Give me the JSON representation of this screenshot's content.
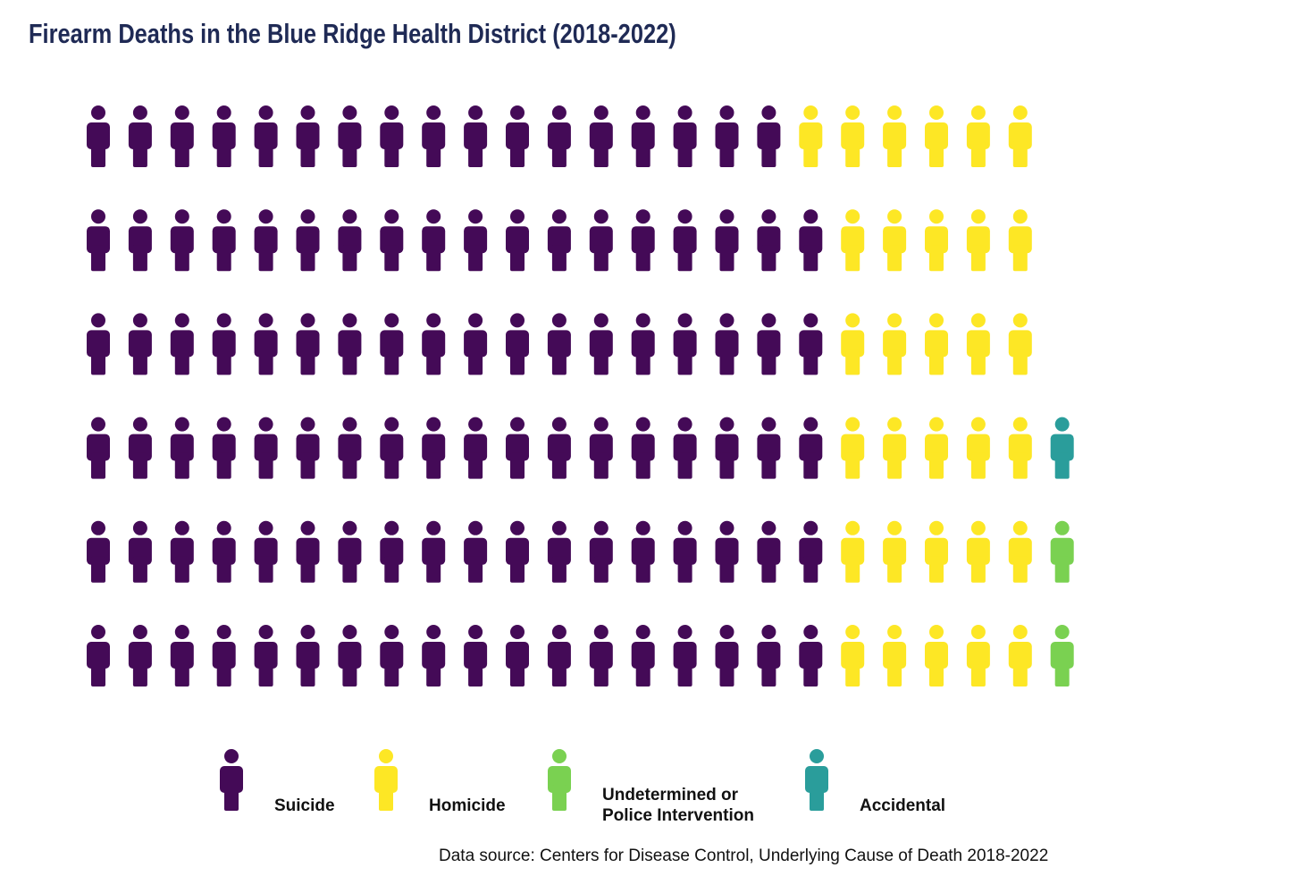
{
  "title": "Firearm Deaths in the Blue Ridge Health District (2018-2022)",
  "chart_data": {
    "type": "pictogram",
    "title": "Firearm Deaths in the Blue Ridge Health District (2018-2022)",
    "unit": "one person icon = one death",
    "categories": [
      {
        "key": "suicide",
        "name": "Suicide",
        "color": "#440a57",
        "count": 107
      },
      {
        "key": "homicide",
        "name": "Homicide",
        "color": "#fde725",
        "count": 31
      },
      {
        "key": "undetermined",
        "name": "Undetermined or Police Intervention",
        "label_lines": [
          "Undetermined or",
          "Police Intervention"
        ],
        "color": "#7ad151",
        "count": 2
      },
      {
        "key": "accidental",
        "name": "Accidental",
        "color": "#2a9d9b",
        "count": 1
      }
    ],
    "rows": [
      [
        "suicide",
        "suicide",
        "suicide",
        "suicide",
        "suicide",
        "suicide",
        "suicide",
        "suicide",
        "suicide",
        "suicide",
        "suicide",
        "suicide",
        "suicide",
        "suicide",
        "suicide",
        "suicide",
        "suicide",
        "homicide",
        "homicide",
        "homicide",
        "homicide",
        "homicide",
        "homicide"
      ],
      [
        "suicide",
        "suicide",
        "suicide",
        "suicide",
        "suicide",
        "suicide",
        "suicide",
        "suicide",
        "suicide",
        "suicide",
        "suicide",
        "suicide",
        "suicide",
        "suicide",
        "suicide",
        "suicide",
        "suicide",
        "suicide",
        "homicide",
        "homicide",
        "homicide",
        "homicide",
        "homicide"
      ],
      [
        "suicide",
        "suicide",
        "suicide",
        "suicide",
        "suicide",
        "suicide",
        "suicide",
        "suicide",
        "suicide",
        "suicide",
        "suicide",
        "suicide",
        "suicide",
        "suicide",
        "suicide",
        "suicide",
        "suicide",
        "suicide",
        "homicide",
        "homicide",
        "homicide",
        "homicide",
        "homicide"
      ],
      [
        "suicide",
        "suicide",
        "suicide",
        "suicide",
        "suicide",
        "suicide",
        "suicide",
        "suicide",
        "suicide",
        "suicide",
        "suicide",
        "suicide",
        "suicide",
        "suicide",
        "suicide",
        "suicide",
        "suicide",
        "suicide",
        "homicide",
        "homicide",
        "homicide",
        "homicide",
        "homicide",
        "accidental"
      ],
      [
        "suicide",
        "suicide",
        "suicide",
        "suicide",
        "suicide",
        "suicide",
        "suicide",
        "suicide",
        "suicide",
        "suicide",
        "suicide",
        "suicide",
        "suicide",
        "suicide",
        "suicide",
        "suicide",
        "suicide",
        "suicide",
        "homicide",
        "homicide",
        "homicide",
        "homicide",
        "homicide",
        "undetermined"
      ],
      [
        "suicide",
        "suicide",
        "suicide",
        "suicide",
        "suicide",
        "suicide",
        "suicide",
        "suicide",
        "suicide",
        "suicide",
        "suicide",
        "suicide",
        "suicide",
        "suicide",
        "suicide",
        "suicide",
        "suicide",
        "suicide",
        "homicide",
        "homicide",
        "homicide",
        "homicide",
        "homicide",
        "undetermined"
      ]
    ],
    "legend_position": "bottom",
    "grid": false
  },
  "source": "Data source: Centers for Disease Control, Underlying Cause of Death 2018-2022"
}
